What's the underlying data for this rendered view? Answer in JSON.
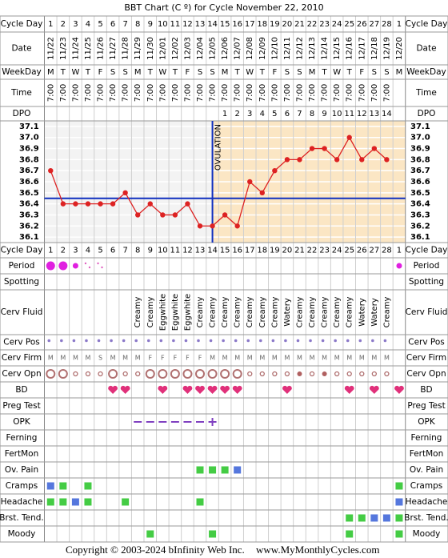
{
  "chart_data": {
    "type": "line",
    "title": "BBT Chart (C º) for Cycle November 22, 2010",
    "categories": [
      1,
      2,
      3,
      4,
      5,
      6,
      7,
      8,
      9,
      10,
      11,
      12,
      13,
      14,
      15,
      16,
      17,
      18,
      19,
      20,
      21,
      22,
      23,
      24,
      25,
      26,
      27,
      28,
      1
    ],
    "values": [
      36.7,
      36.4,
      36.4,
      36.4,
      36.4,
      36.4,
      36.5,
      36.3,
      36.4,
      36.3,
      36.3,
      36.4,
      36.2,
      36.2,
      36.3,
      36.2,
      36.6,
      36.5,
      36.7,
      36.8,
      36.8,
      36.9,
      36.9,
      36.8,
      37.0,
      36.8,
      36.9,
      36.8,
      null
    ],
    "color": "#dd2222",
    "ylim": [
      36.05,
      37.15
    ],
    "yticks": [
      36.1,
      36.2,
      36.3,
      36.4,
      36.5,
      36.6,
      36.7,
      36.8,
      36.9,
      {
        "value": 37,
        "label": "37.0"
      },
      37.1
    ],
    "grid": true,
    "coverline": 36.45,
    "ovulation_day": 14,
    "ovulation_label": "OVULATION"
  },
  "row_labels": [
    "Cycle Day",
    "Date",
    "WeekDay",
    "Time",
    "DPO",
    "Cycle Day",
    "Period",
    "Spotting",
    "Cerv Fluid",
    "Cerv Pos",
    "Cerv Firm",
    "Cerv Opn",
    "BD",
    "Preg Test",
    "OPK",
    "Ferning",
    "FertMon",
    "Ov. Pain",
    "Cramps",
    "Headache",
    "Brst. Tend.",
    "Moody"
  ],
  "dates": [
    "11/22",
    "11/23",
    "11/24",
    "11/25",
    "11/26",
    "11/27",
    "11/28",
    "11/29",
    "11/30",
    "12/01",
    "12/02",
    "12/03",
    "12/04",
    "12/05",
    "12/06",
    "12/07",
    "12/08",
    "12/09",
    "12/10",
    "12/11",
    "12/12",
    "12/13",
    "12/14",
    "12/15",
    "12/16",
    "12/17",
    "12/18",
    "12/19",
    "12/20"
  ],
  "weekdays": [
    "M",
    "T",
    "W",
    "T",
    "F",
    "S",
    "S",
    "M",
    "T",
    "W",
    "T",
    "F",
    "S",
    "S",
    "M",
    "T",
    "W",
    "T",
    "F",
    "S",
    "S",
    "M",
    "T",
    "W",
    "T",
    "F",
    "S",
    "S",
    "M"
  ],
  "times": [
    "7:00",
    "7:00",
    "7:00",
    "7:00",
    "7:00",
    "7:00",
    "7:00",
    "7:00",
    "7:00",
    "7:00",
    "7:00",
    "7:00",
    "7:00",
    "7:00",
    "7:00",
    "7:00",
    "7:00",
    "7:00",
    "7:00",
    "7:00",
    "7:00",
    "7:00",
    "7:00",
    "7:00",
    "7:00",
    "7:00",
    "7:00",
    "7:00",
    null
  ],
  "dpo": [
    null,
    null,
    null,
    null,
    null,
    null,
    null,
    null,
    null,
    null,
    null,
    null,
    null,
    null,
    1,
    2,
    3,
    4,
    5,
    6,
    7,
    8,
    9,
    10,
    11,
    12,
    13,
    14,
    null
  ],
  "cerv_fluid": [
    null,
    null,
    null,
    null,
    null,
    null,
    null,
    "Creamy",
    "Creamy",
    "Eggwhite",
    "Eggwhite",
    "Eggwhite",
    "Creamy",
    "Creamy",
    "Creamy",
    "Creamy",
    "Creamy",
    "Creamy",
    "Creamy",
    "Watery",
    "Creamy",
    "Creamy",
    "Creamy",
    "Creamy",
    "Creamy",
    "Watery",
    "Watery",
    "Creamy",
    null
  ],
  "cerv_firm": [
    "M",
    "M",
    "M",
    "M",
    "S",
    "M",
    "M",
    "M",
    "F",
    "F",
    "F",
    "F",
    "F",
    "M",
    "M",
    "M",
    "M",
    "M",
    "M",
    "M",
    "M",
    "M",
    "M",
    "M",
    "M",
    "M",
    "M",
    "M",
    null
  ],
  "footer": [
    "Copyright © 2003-2024 bInfinity Web Inc.",
    "www.MyMonthlyCycles.com"
  ]
}
